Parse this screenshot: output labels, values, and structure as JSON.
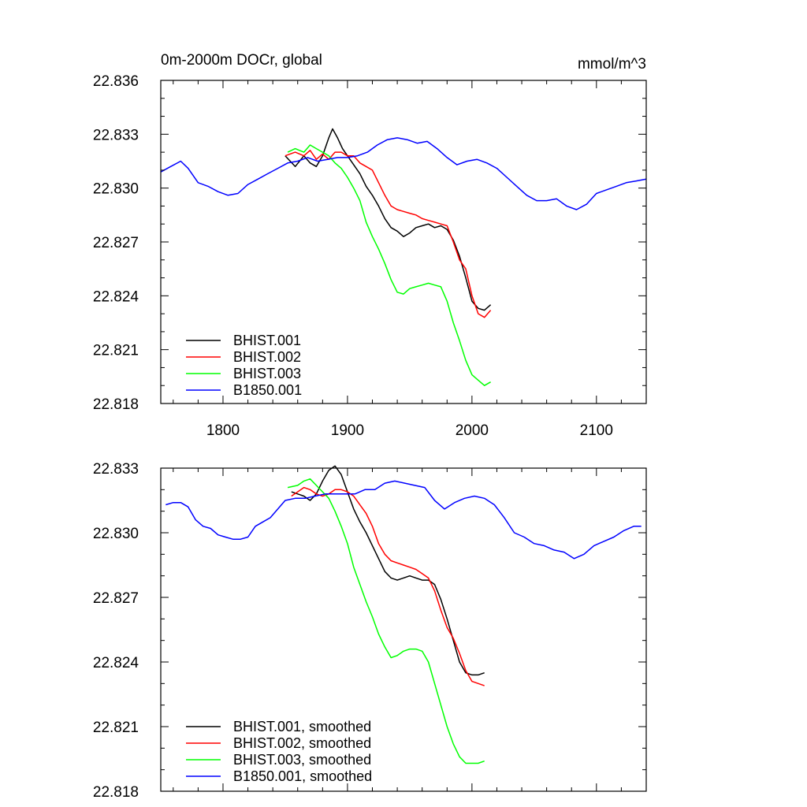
{
  "chart_data": [
    {
      "type": "line",
      "title": "0m-2000m DOCr, global",
      "units": "mmol/m^3",
      "xlim": [
        1750,
        2140
      ],
      "ylim": [
        22.818,
        22.836
      ],
      "xticks": [
        1800,
        1900,
        2000,
        2100
      ],
      "xtick_labels": [
        "1800",
        "1900",
        "2000",
        "2100"
      ],
      "yticks": [
        22.818,
        22.821,
        22.824,
        22.827,
        22.83,
        22.833,
        22.836
      ],
      "ytick_labels": [
        "22.818",
        "22.821",
        "22.824",
        "22.827",
        "22.830",
        "22.833",
        "22.836"
      ],
      "legend_position": "bottom-left",
      "series": [
        {
          "name": "BHIST.001",
          "color": "#000000",
          "x": [
            1850,
            1858,
            1865,
            1870,
            1875,
            1880,
            1885,
            1888,
            1892,
            1896,
            1900,
            1905,
            1910,
            1915,
            1920,
            1925,
            1930,
            1935,
            1940,
            1945,
            1950,
            1955,
            1960,
            1965,
            1970,
            1975,
            1980,
            1985,
            1990,
            1995,
            2000,
            2005,
            2010,
            2015
          ],
          "y": [
            22.8318,
            22.8312,
            22.8318,
            22.8314,
            22.8312,
            22.8318,
            22.8328,
            22.8333,
            22.8328,
            22.8322,
            22.8318,
            22.8313,
            22.8308,
            22.8301,
            22.8296,
            22.829,
            22.8283,
            22.8278,
            22.8276,
            22.8273,
            22.8275,
            22.8278,
            22.8279,
            22.828,
            22.8278,
            22.8279,
            22.8277,
            22.8271,
            22.8262,
            22.825,
            22.8237,
            22.8233,
            22.8232,
            22.8235
          ]
        },
        {
          "name": "BHIST.002",
          "color": "#ff0000",
          "x": [
            1850,
            1858,
            1865,
            1870,
            1875,
            1880,
            1885,
            1890,
            1895,
            1900,
            1905,
            1910,
            1915,
            1920,
            1925,
            1930,
            1935,
            1940,
            1945,
            1950,
            1955,
            1960,
            1965,
            1970,
            1975,
            1980,
            1985,
            1990,
            1995,
            2000,
            2005,
            2010,
            2015
          ],
          "y": [
            22.8318,
            22.832,
            22.8318,
            22.8321,
            22.8316,
            22.8319,
            22.8316,
            22.832,
            22.832,
            22.8318,
            22.8318,
            22.8314,
            22.8312,
            22.831,
            22.8303,
            22.8296,
            22.829,
            22.8288,
            22.8287,
            22.8286,
            22.8285,
            22.8283,
            22.8282,
            22.8281,
            22.828,
            22.8279,
            22.827,
            22.826,
            22.8255,
            22.824,
            22.823,
            22.8228,
            22.8232
          ]
        },
        {
          "name": "BHIST.003",
          "color": "#00ff00",
          "x": [
            1852,
            1858,
            1865,
            1870,
            1875,
            1880,
            1885,
            1890,
            1895,
            1900,
            1905,
            1910,
            1915,
            1920,
            1925,
            1930,
            1935,
            1940,
            1945,
            1950,
            1955,
            1960,
            1965,
            1970,
            1975,
            1980,
            1985,
            1990,
            1995,
            2000,
            2005,
            2010,
            2015
          ],
          "y": [
            22.832,
            22.8322,
            22.832,
            22.8324,
            22.8322,
            22.832,
            22.8318,
            22.8314,
            22.8311,
            22.8306,
            22.83,
            22.8293,
            22.8281,
            22.8273,
            22.8266,
            22.8258,
            22.8249,
            22.8242,
            22.8241,
            22.8244,
            22.8245,
            22.8246,
            22.8247,
            22.8246,
            22.8245,
            22.8237,
            22.8225,
            22.8215,
            22.8204,
            22.8196,
            22.8193,
            22.819,
            22.8192
          ]
        },
        {
          "name": "B1850.001",
          "color": "#0000ff",
          "x": [
            1750,
            1758,
            1766,
            1772,
            1780,
            1788,
            1796,
            1804,
            1812,
            1820,
            1828,
            1836,
            1844,
            1852,
            1860,
            1868,
            1876,
            1884,
            1892,
            1900,
            1908,
            1916,
            1924,
            1932,
            1940,
            1948,
            1956,
            1964,
            1972,
            1980,
            1988,
            1996,
            2004,
            2012,
            2020,
            2028,
            2036,
            2044,
            2052,
            2060,
            2068,
            2076,
            2084,
            2092,
            2100,
            2108,
            2116,
            2124,
            2132,
            2140
          ],
          "y": [
            22.8309,
            22.8312,
            22.8315,
            22.8311,
            22.8303,
            22.8301,
            22.8298,
            22.8296,
            22.8297,
            22.8302,
            22.8305,
            22.8308,
            22.8311,
            22.8314,
            22.8315,
            22.8317,
            22.8315,
            22.8316,
            22.8317,
            22.8317,
            22.8318,
            22.832,
            22.8324,
            22.8327,
            22.8328,
            22.8327,
            22.8325,
            22.8326,
            22.8322,
            22.8317,
            22.8313,
            22.8315,
            22.8316,
            22.8314,
            22.8311,
            22.8306,
            22.8301,
            22.8296,
            22.8293,
            22.8293,
            22.8294,
            22.829,
            22.8288,
            22.8291,
            22.8297,
            22.8299,
            22.8301,
            22.8303,
            22.8304,
            22.8305
          ]
        }
      ]
    },
    {
      "type": "line",
      "xlim": [
        1750,
        2140
      ],
      "ylim": [
        22.818,
        22.833
      ],
      "xticks": [
        1800,
        1900,
        2000,
        2100
      ],
      "yticks": [
        22.818,
        22.821,
        22.824,
        22.827,
        22.83,
        22.833
      ],
      "ytick_labels": [
        "22.818",
        "22.821",
        "22.824",
        "22.827",
        "22.830",
        "22.833"
      ],
      "legend_position": "bottom-left",
      "series": [
        {
          "name": "BHIST.001, smoothed",
          "color": "#000000",
          "x": [
            1855,
            1865,
            1870,
            1875,
            1880,
            1885,
            1890,
            1895,
            1900,
            1905,
            1910,
            1915,
            1920,
            1925,
            1930,
            1935,
            1940,
            1945,
            1950,
            1955,
            1960,
            1965,
            1970,
            1975,
            1980,
            1985,
            1990,
            1995,
            2000,
            2005,
            2010
          ],
          "y": [
            22.8319,
            22.8317,
            22.8315,
            22.8318,
            22.8324,
            22.8329,
            22.8331,
            22.8327,
            22.8319,
            22.8311,
            22.8305,
            22.83,
            22.8294,
            22.8288,
            22.8282,
            22.8279,
            22.8278,
            22.8279,
            22.828,
            22.8279,
            22.8278,
            22.8278,
            22.8276,
            22.8269,
            22.826,
            22.825,
            22.824,
            22.8235,
            22.8234,
            22.8234,
            22.8235
          ]
        },
        {
          "name": "BHIST.002, smoothed",
          "color": "#ff0000",
          "x": [
            1855,
            1860,
            1865,
            1870,
            1875,
            1880,
            1885,
            1890,
            1895,
            1900,
            1905,
            1910,
            1915,
            1920,
            1925,
            1930,
            1935,
            1940,
            1945,
            1950,
            1955,
            1960,
            1965,
            1970,
            1975,
            1980,
            1985,
            1990,
            1995,
            2000,
            2005,
            2010
          ],
          "y": [
            22.8317,
            22.8319,
            22.8321,
            22.832,
            22.8318,
            22.8317,
            22.8318,
            22.832,
            22.832,
            22.8319,
            22.8317,
            22.8313,
            22.8309,
            22.8303,
            22.8295,
            22.829,
            22.8287,
            22.8286,
            22.8285,
            22.8284,
            22.8283,
            22.8281,
            22.8279,
            22.8273,
            22.8264,
            22.8256,
            22.8251,
            22.8244,
            22.8236,
            22.8231,
            22.823,
            22.8229
          ]
        },
        {
          "name": "BHIST.003, smoothed",
          "color": "#00ff00",
          "x": [
            1852,
            1860,
            1865,
            1870,
            1875,
            1880,
            1885,
            1890,
            1895,
            1900,
            1905,
            1910,
            1915,
            1920,
            1925,
            1930,
            1935,
            1940,
            1945,
            1950,
            1955,
            1960,
            1965,
            1970,
            1975,
            1980,
            1985,
            1990,
            1995,
            2000,
            2005,
            2010
          ],
          "y": [
            22.8321,
            22.8322,
            22.8324,
            22.8325,
            22.8322,
            22.8319,
            22.8316,
            22.831,
            22.8303,
            22.8295,
            22.8284,
            22.8276,
            22.8268,
            22.8261,
            22.8253,
            22.8247,
            22.8242,
            22.8243,
            22.8245,
            22.8246,
            22.8246,
            22.8245,
            22.824,
            22.823,
            22.822,
            22.821,
            22.8202,
            22.8196,
            22.8193,
            22.8193,
            22.8193,
            22.8194
          ]
        },
        {
          "name": "B1850.001, smoothed",
          "color": "#0000ff",
          "x": [
            1754,
            1760,
            1766,
            1772,
            1778,
            1784,
            1790,
            1796,
            1802,
            1808,
            1814,
            1820,
            1826,
            1832,
            1838,
            1844,
            1850,
            1858,
            1866,
            1874,
            1882,
            1890,
            1898,
            1906,
            1914,
            1922,
            1930,
            1938,
            1946,
            1954,
            1962,
            1970,
            1978,
            1986,
            1994,
            2002,
            2010,
            2018,
            2026,
            2034,
            2042,
            2050,
            2058,
            2066,
            2074,
            2082,
            2090,
            2098,
            2106,
            2114,
            2122,
            2130,
            2136
          ],
          "y": [
            22.8313,
            22.8314,
            22.8314,
            22.8312,
            22.8306,
            22.8303,
            22.8302,
            22.8299,
            22.8298,
            22.8297,
            22.8297,
            22.8298,
            22.8303,
            22.8305,
            22.8307,
            22.8311,
            22.8315,
            22.8316,
            22.8316,
            22.8317,
            22.8318,
            22.8318,
            22.8318,
            22.8318,
            22.832,
            22.832,
            22.8323,
            22.8324,
            22.8323,
            22.8322,
            22.8321,
            22.8315,
            22.8311,
            22.8314,
            22.8316,
            22.8317,
            22.8316,
            22.8313,
            22.8307,
            22.83,
            22.8298,
            22.8295,
            22.8294,
            22.8292,
            22.8291,
            22.8288,
            22.829,
            22.8294,
            22.8296,
            22.8298,
            22.8301,
            22.8303,
            22.8303
          ]
        }
      ]
    }
  ]
}
